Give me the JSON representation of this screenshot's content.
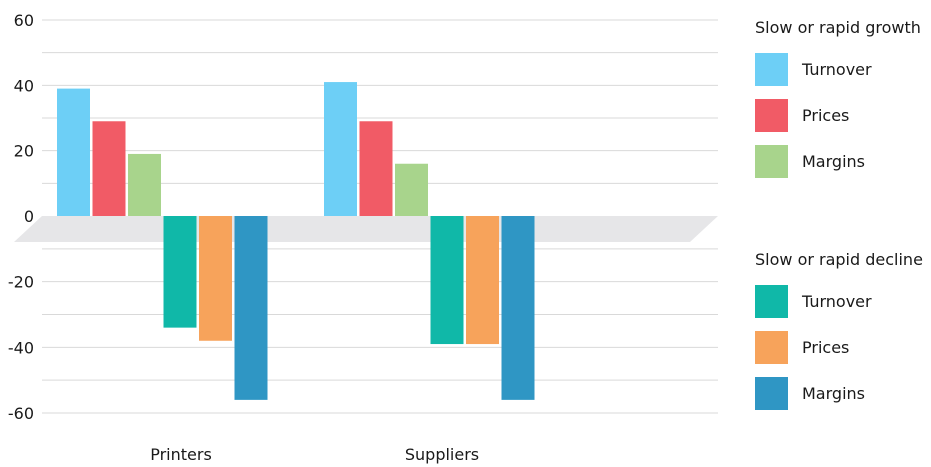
{
  "chart_data": {
    "type": "bar",
    "categories": [
      "Printers",
      "Suppliers"
    ],
    "ylim": [
      -60,
      60
    ],
    "yticks": [
      60,
      40,
      20,
      0,
      -20,
      -40,
      -60
    ],
    "grid": true,
    "legend_position": "right",
    "legend_groups": [
      {
        "title": "Slow or rapid growth",
        "items": [
          {
            "name": "Turnover",
            "color": "#6dcff6"
          },
          {
            "name": "Prices",
            "color": "#f15b66"
          },
          {
            "name": "Margins",
            "color": "#a8d48c"
          }
        ]
      },
      {
        "title": "Slow or rapid decline",
        "items": [
          {
            "name": "Turnover",
            "color": "#10b8a8"
          },
          {
            "name": "Prices",
            "color": "#f7a35b"
          },
          {
            "name": "Margins",
            "color": "#2f96c4"
          }
        ]
      }
    ],
    "series": [
      {
        "name": "Turnover",
        "group": "Slow or rapid growth",
        "color": "#6dcff6",
        "values": [
          39,
          41
        ]
      },
      {
        "name": "Prices",
        "group": "Slow or rapid growth",
        "color": "#f15b66",
        "values": [
          29,
          29
        ]
      },
      {
        "name": "Margins",
        "group": "Slow or rapid growth",
        "color": "#a8d48c",
        "values": [
          19,
          16
        ]
      },
      {
        "name": "Turnover",
        "group": "Slow or rapid decline",
        "color": "#10b8a8",
        "values": [
          -34,
          -39
        ]
      },
      {
        "name": "Prices",
        "group": "Slow or rapid decline",
        "color": "#f7a35b",
        "values": [
          -38,
          -39
        ]
      },
      {
        "name": "Margins",
        "group": "Slow or rapid decline",
        "color": "#2f96c4",
        "values": [
          -56,
          -56
        ]
      }
    ],
    "gridline_color": "#d9d9d9",
    "zero_band_color": "#e6e6e8"
  }
}
